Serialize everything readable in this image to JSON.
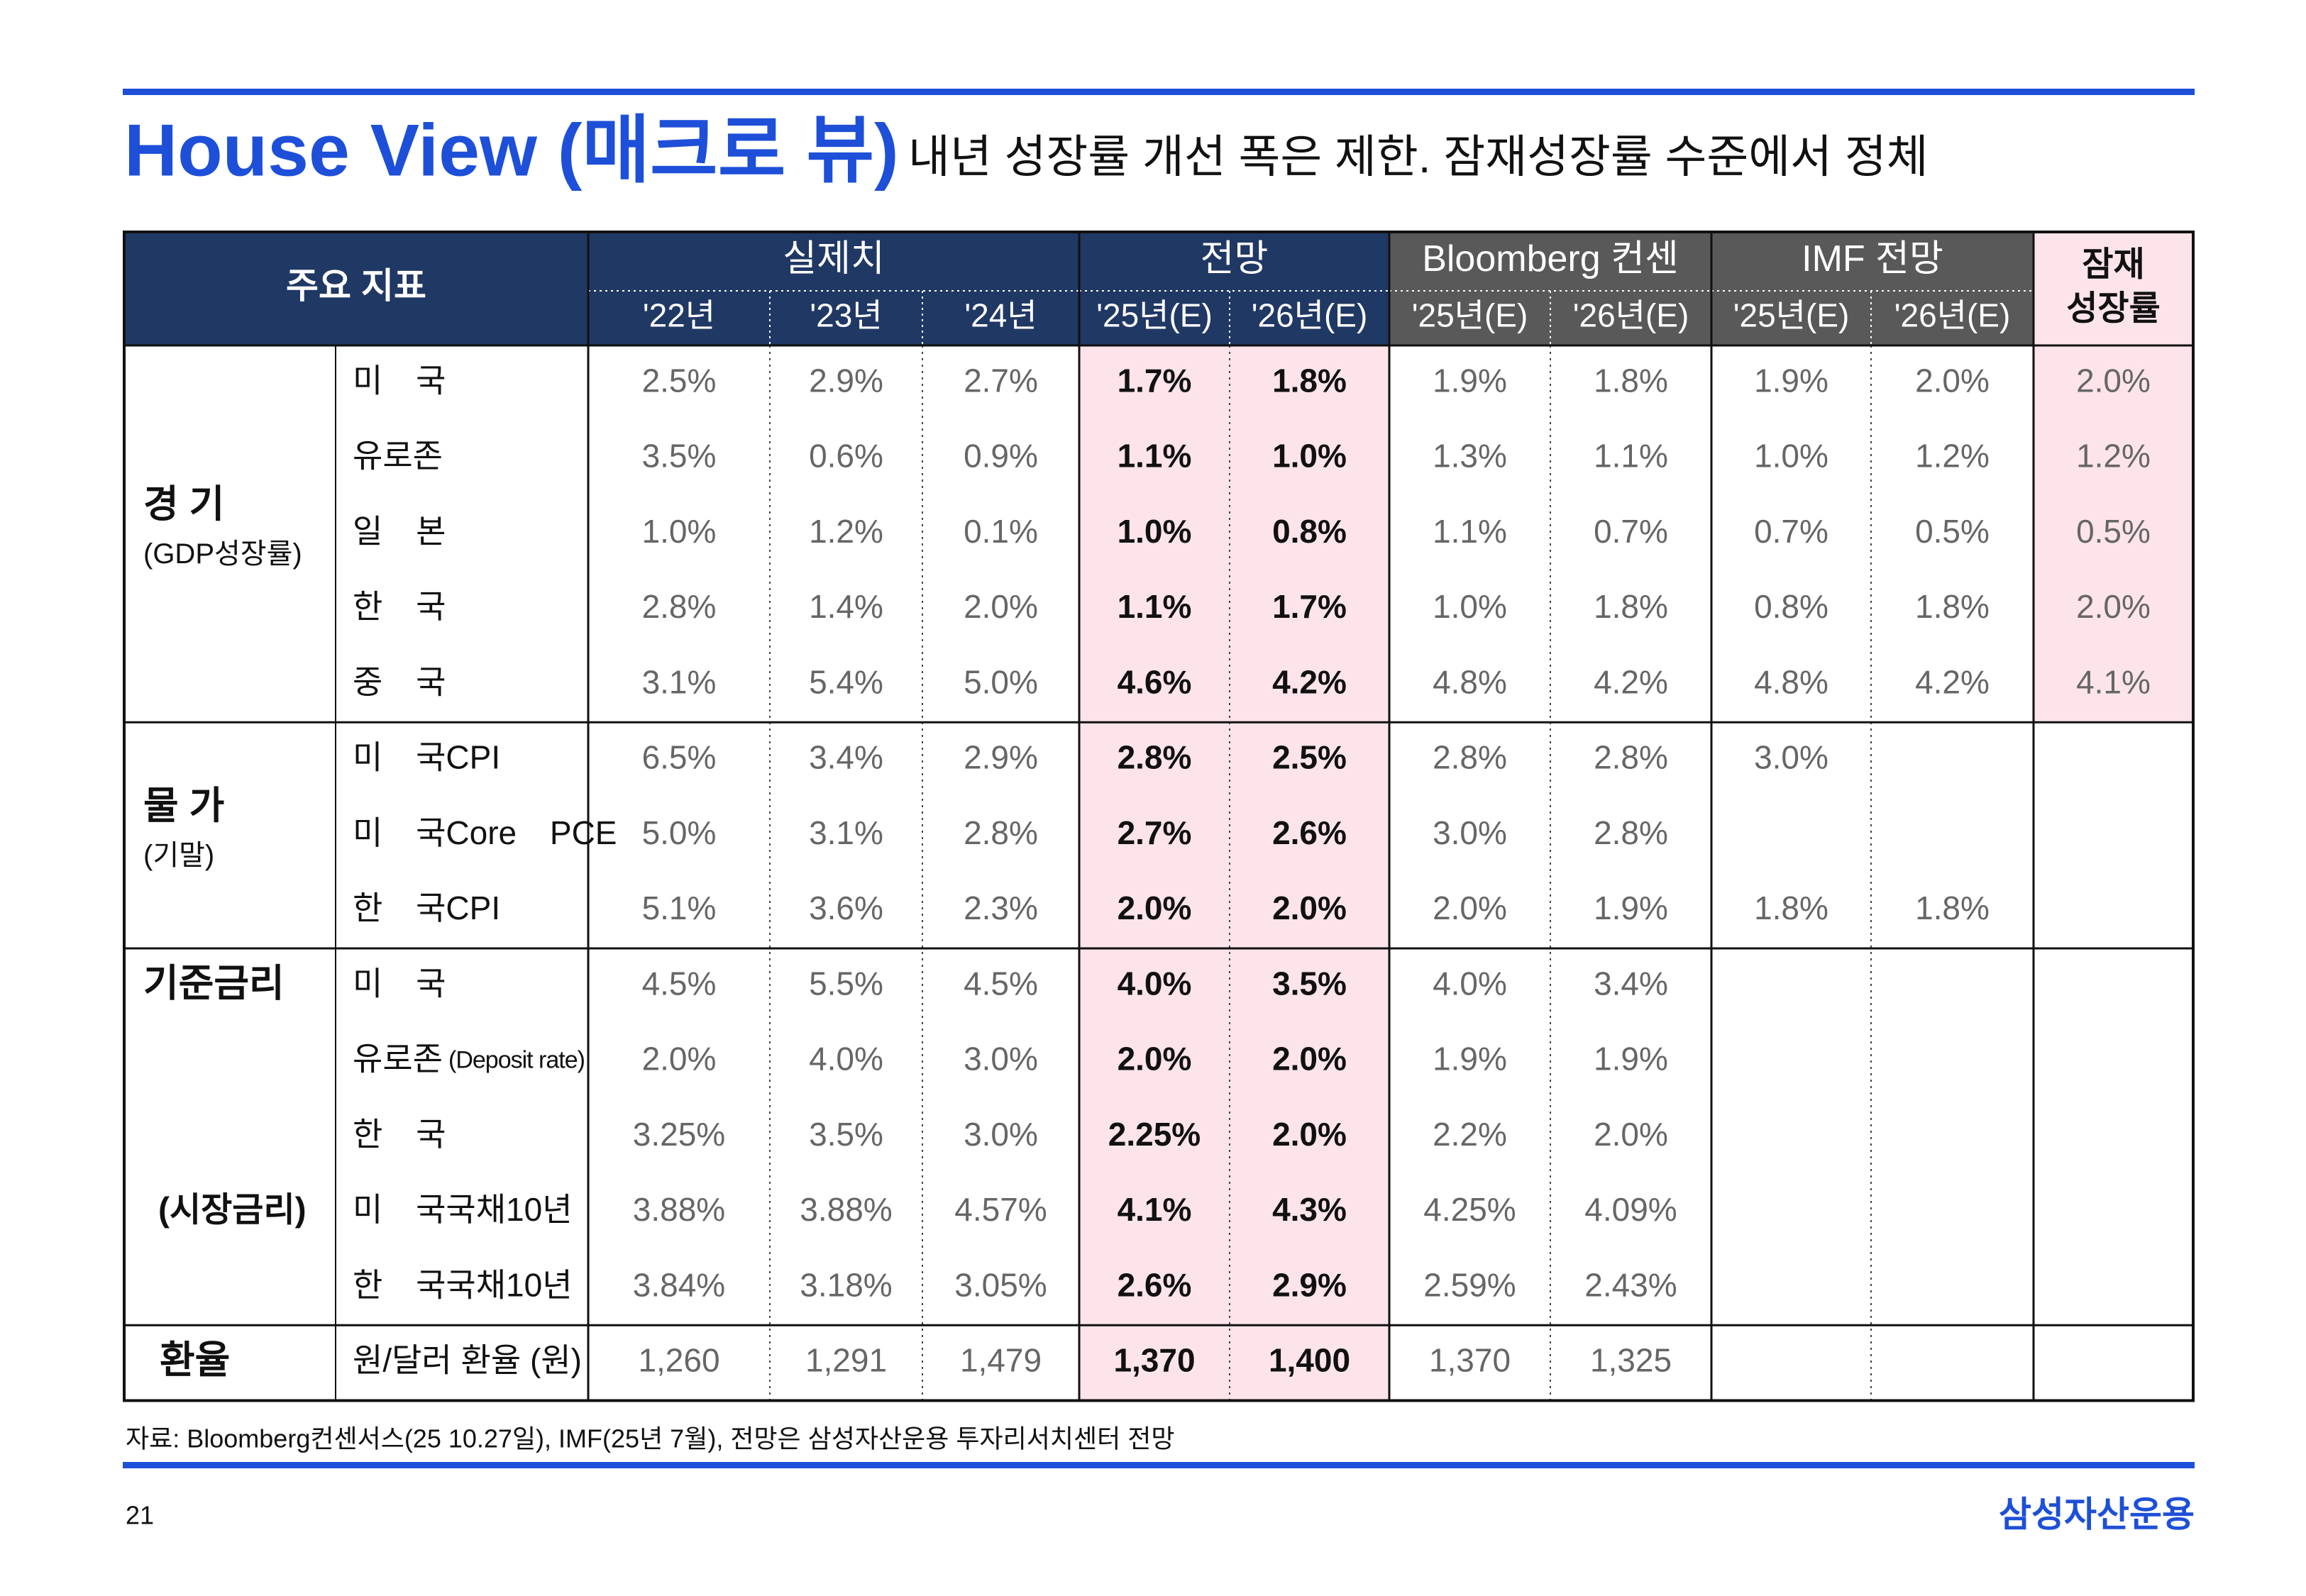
{
  "header": {
    "title": "House View (매크로 뷰)",
    "subtitle": "내년 성장률 개선 폭은 제한. 잠재성장률 수준에서 정체"
  },
  "table": {
    "corner": "주요 지표",
    "groups": [
      {
        "label": "실제치",
        "years": [
          "'22년",
          "'23년",
          "'24년"
        ]
      },
      {
        "label": "전망",
        "years": [
          "'25년(E)",
          "'26년(E)"
        ]
      },
      {
        "label": "Bloomberg 컨센",
        "years": [
          "'25년(E)",
          "'26년(E)"
        ]
      },
      {
        "label": "IMF 전망",
        "years": [
          "'25년(E)",
          "'26년(E)"
        ]
      }
    ],
    "potential": [
      "잠재",
      "성장률"
    ],
    "sections": [
      {
        "label": "경 기",
        "sublabel": "(GDP성장률)",
        "rows": [
          {
            "label": "미 국",
            "cells": [
              "2.5%",
              "2.9%",
              "2.7%",
              "1.7%",
              "1.8%",
              "1.9%",
              "1.8%",
              "1.9%",
              "2.0%",
              "2.0%"
            ]
          },
          {
            "label": "유로존",
            "cells": [
              "3.5%",
              "0.6%",
              "0.9%",
              "1.1%",
              "1.0%",
              "1.3%",
              "1.1%",
              "1.0%",
              "1.2%",
              "1.2%"
            ]
          },
          {
            "label": "일 본",
            "cells": [
              "1.0%",
              "1.2%",
              "0.1%",
              "1.0%",
              "0.8%",
              "1.1%",
              "0.7%",
              "0.7%",
              "0.5%",
              "0.5%"
            ]
          },
          {
            "label": "한 국",
            "cells": [
              "2.8%",
              "1.4%",
              "2.0%",
              "1.1%",
              "1.7%",
              "1.0%",
              "1.8%",
              "0.8%",
              "1.8%",
              "2.0%"
            ]
          },
          {
            "label": "중 국",
            "cells": [
              "3.1%",
              "5.4%",
              "5.0%",
              "4.6%",
              "4.2%",
              "4.8%",
              "4.2%",
              "4.8%",
              "4.2%",
              "4.1%"
            ]
          }
        ]
      },
      {
        "label": "물 가",
        "sublabel": "(기말)",
        "rows": [
          {
            "label": "미 국CPI",
            "cells": [
              "6.5%",
              "3.4%",
              "2.9%",
              "2.8%",
              "2.5%",
              "2.8%",
              "2.8%",
              "3.0%",
              null,
              null
            ]
          },
          {
            "label": "미 국Core PCE",
            "cells": [
              "5.0%",
              "3.1%",
              "2.8%",
              "2.7%",
              "2.6%",
              "3.0%",
              "2.8%",
              null,
              null,
              null
            ]
          },
          {
            "label": "한 국CPI",
            "cells": [
              "5.1%",
              "3.6%",
              "2.3%",
              "2.0%",
              "2.0%",
              "2.0%",
              "1.9%",
              "1.8%",
              "1.8%",
              null
            ]
          }
        ]
      },
      {
        "label": "기준금리",
        "sublabel": "(시장금리)",
        "rows": [
          {
            "label": "미 국",
            "cells": [
              "4.5%",
              "5.5%",
              "4.5%",
              "4.0%",
              "3.5%",
              "4.0%",
              "3.4%",
              null,
              null,
              null
            ]
          },
          {
            "label": "유로존",
            "note": "(Deposit rate)",
            "cells": [
              "2.0%",
              "4.0%",
              "3.0%",
              "2.0%",
              "2.0%",
              "1.9%",
              "1.9%",
              null,
              null,
              null
            ]
          },
          {
            "label": "한 국",
            "cells": [
              "3.25%",
              "3.5%",
              "3.0%",
              "2.25%",
              "2.0%",
              "2.2%",
              "2.0%",
              null,
              null,
              null
            ]
          },
          {
            "label": "미 국국채10년",
            "cells": [
              "3.88%",
              "3.88%",
              "4.57%",
              "4.1%",
              "4.3%",
              "4.25%",
              "4.09%",
              null,
              null,
              null
            ]
          },
          {
            "label": "한 국국채10년",
            "cells": [
              "3.84%",
              "3.18%",
              "3.05%",
              "2.6%",
              "2.9%",
              "2.59%",
              "2.43%",
              null,
              null,
              null
            ]
          }
        ]
      },
      {
        "label": "환율",
        "rows": [
          {
            "label": "원/달러 환율 (원)",
            "cells": [
              "1,260",
              "1,291",
              "1,479",
              "1,370",
              "1,400",
              "1,370",
              "1,325",
              null,
              null,
              null
            ]
          }
        ]
      }
    ]
  },
  "footer": {
    "source": "자료: Bloomberg컨센서스(25 10.27일), IMF(25년 7월), 전망은 삼성자산운용 투자리서치센터 전망",
    "page": "21",
    "logo": "삼성자산운용"
  }
}
